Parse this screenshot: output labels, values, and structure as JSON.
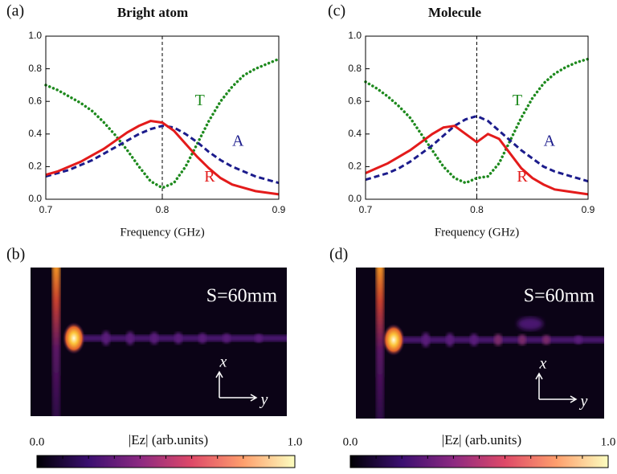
{
  "chart_data": [
    {
      "type": "line",
      "panel": "(a)",
      "title": "Bright atom",
      "xlabel": "Frequency (GHz)",
      "x": [
        0.7,
        0.71,
        0.72,
        0.73,
        0.74,
        0.75,
        0.76,
        0.77,
        0.78,
        0.79,
        0.8,
        0.81,
        0.82,
        0.83,
        0.84,
        0.85,
        0.86,
        0.87,
        0.88,
        0.89,
        0.9
      ],
      "xlim": [
        0.7,
        0.9
      ],
      "xticks": [
        0.7,
        0.8,
        0.9
      ],
      "ylim": [
        0,
        1
      ],
      "yticks": [
        {
          "value": 0,
          "label": "0.0"
        },
        0.2,
        0.4,
        0.6,
        0.8,
        {
          "value": 1,
          "label": "1.0"
        }
      ],
      "vline": 0.8,
      "series": [
        {
          "name": "T",
          "color": "#1e8a1e",
          "linestyle": "dotted",
          "values": [
            0.7,
            0.67,
            0.63,
            0.59,
            0.54,
            0.47,
            0.39,
            0.3,
            0.2,
            0.11,
            0.07,
            0.1,
            0.2,
            0.34,
            0.48,
            0.6,
            0.69,
            0.76,
            0.8,
            0.83,
            0.86
          ]
        },
        {
          "name": "A",
          "color": "#1c1c8c",
          "linestyle": "dashed",
          "values": [
            0.14,
            0.16,
            0.18,
            0.21,
            0.24,
            0.28,
            0.32,
            0.36,
            0.4,
            0.43,
            0.45,
            0.44,
            0.4,
            0.35,
            0.29,
            0.24,
            0.2,
            0.17,
            0.14,
            0.12,
            0.1
          ]
        },
        {
          "name": "R",
          "color": "#e31b1b",
          "linestyle": "solid",
          "values": [
            0.15,
            0.17,
            0.2,
            0.23,
            0.27,
            0.31,
            0.36,
            0.41,
            0.45,
            0.48,
            0.47,
            0.42,
            0.34,
            0.26,
            0.19,
            0.13,
            0.09,
            0.07,
            0.05,
            0.04,
            0.03
          ]
        }
      ]
    },
    {
      "type": "line",
      "panel": "(c)",
      "title": "Molecule",
      "xlabel": "Frequency (GHz)",
      "x": [
        0.7,
        0.71,
        0.72,
        0.73,
        0.74,
        0.75,
        0.76,
        0.77,
        0.78,
        0.79,
        0.8,
        0.81,
        0.82,
        0.83,
        0.84,
        0.85,
        0.86,
        0.87,
        0.88,
        0.89,
        0.9
      ],
      "xlim": [
        0.7,
        0.9
      ],
      "xticks": [
        0.7,
        0.8,
        0.9
      ],
      "ylim": [
        0,
        1
      ],
      "yticks": [
        {
          "value": 0,
          "label": "0.0"
        },
        0.2,
        0.4,
        0.6,
        0.8,
        {
          "value": 1,
          "label": "1.0"
        }
      ],
      "vline": 0.8,
      "series": [
        {
          "name": "T",
          "color": "#1e8a1e",
          "linestyle": "dotted",
          "values": [
            0.72,
            0.68,
            0.63,
            0.57,
            0.5,
            0.4,
            0.3,
            0.2,
            0.13,
            0.1,
            0.13,
            0.14,
            0.22,
            0.36,
            0.5,
            0.62,
            0.71,
            0.77,
            0.81,
            0.84,
            0.86
          ]
        },
        {
          "name": "A",
          "color": "#1c1c8c",
          "linestyle": "dashed",
          "values": [
            0.12,
            0.14,
            0.16,
            0.19,
            0.23,
            0.28,
            0.33,
            0.39,
            0.45,
            0.49,
            0.51,
            0.48,
            0.42,
            0.36,
            0.3,
            0.25,
            0.2,
            0.17,
            0.15,
            0.13,
            0.11
          ]
        },
        {
          "name": "R",
          "color": "#e31b1b",
          "linestyle": "solid",
          "values": [
            0.16,
            0.19,
            0.22,
            0.26,
            0.3,
            0.35,
            0.4,
            0.44,
            0.45,
            0.4,
            0.35,
            0.4,
            0.37,
            0.28,
            0.19,
            0.13,
            0.09,
            0.06,
            0.05,
            0.04,
            0.03
          ]
        }
      ]
    }
  ],
  "images": [
    {
      "panel": "(b)",
      "annotation": "S=60mm",
      "x_axis": "x",
      "y_axis": "y",
      "colorbar": {
        "label": "|Ez| (arb.units)",
        "lim": [
          0,
          1
        ],
        "ticks": [
          {
            "value": 0,
            "label": "0.0"
          },
          {
            "value": 1,
            "label": "1.0"
          }
        ]
      }
    },
    {
      "panel": "(d)",
      "annotation": "S=60mm",
      "x_axis": "x",
      "y_axis": "y",
      "colorbar": {
        "label": "|Ez| (arb.units)",
        "lim": [
          0,
          1
        ],
        "ticks": [
          {
            "value": 0,
            "label": "0.0"
          },
          {
            "value": 1,
            "label": "1.0"
          }
        ]
      }
    }
  ]
}
